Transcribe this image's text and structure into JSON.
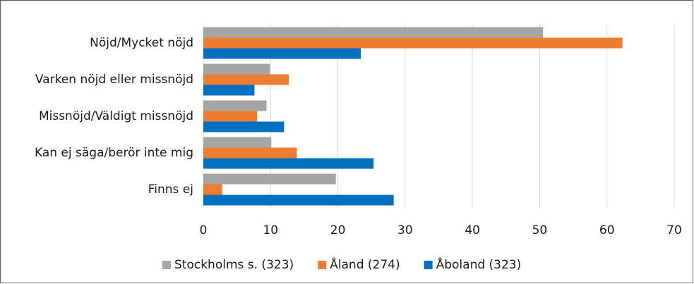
{
  "chart_data": {
    "type": "hbar",
    "categories": [
      "Nöjd/Mycket nöjd",
      "Varken nöjd eller missnöjd",
      "Missnöjd/Väldigt missnöjd",
      "Kan ej säga/berör inte mig",
      "Finns ej"
    ],
    "series": [
      {
        "name": "Stockholms s. (323)",
        "color": "#a5a5a5",
        "values": [
          50.5,
          9.9,
          9.4,
          10.1,
          19.7
        ]
      },
      {
        "name": "Åland (274)",
        "color": "#ed7d31",
        "values": [
          62.3,
          12.7,
          8.0,
          13.9,
          2.8
        ]
      },
      {
        "name": "Åboland (323)",
        "color": "#0070c0",
        "values": [
          23.4,
          7.6,
          12.0,
          25.3,
          28.3
        ]
      }
    ],
    "xlim": [
      0,
      70
    ],
    "xticks": [
      0,
      10,
      20,
      30,
      40,
      50,
      60,
      70
    ],
    "grid": true,
    "legend": "bottom"
  }
}
